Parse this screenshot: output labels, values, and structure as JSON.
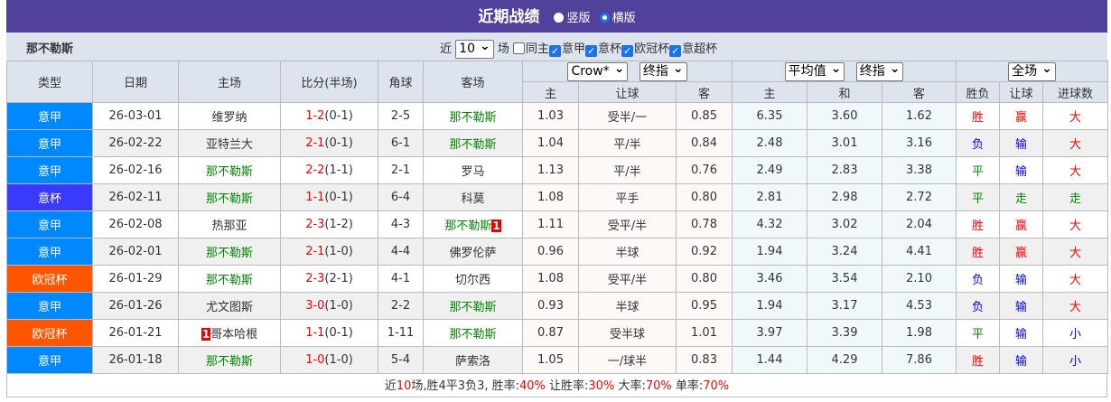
{
  "title": {
    "text": "近期战绩",
    "opt1": "竖版",
    "opt2": "横版",
    "selected": "横版"
  },
  "filter": {
    "team": "那不勒斯",
    "prefix": "近",
    "count": "10",
    "suffix": "场",
    "checks": [
      {
        "label": "同主",
        "checked": false
      },
      {
        "label": "意甲",
        "checked": true
      },
      {
        "label": "意杯",
        "checked": true
      },
      {
        "label": "欧冠杯",
        "checked": true
      },
      {
        "label": "意超杯",
        "checked": true
      }
    ]
  },
  "headers": {
    "type": "类型",
    "date": "日期",
    "home": "主场",
    "score": "比分(半场)",
    "corner": "角球",
    "away": "客场",
    "company": "Crow*",
    "crow_type": "终指",
    "avg": "平均值",
    "avg_type": "终指",
    "period": "全场",
    "h": "主",
    "line": "让球",
    "a": "客",
    "ah": "主",
    "d": "和",
    "aa": "客",
    "wl": "胜负",
    "hc": "让球",
    "ou": "进球数"
  },
  "team_color": "#008800",
  "type_colors": {
    "意甲": "#0088ff",
    "意杯": "#3a3aff",
    "欧冠杯": "#ff5500"
  },
  "rows": [
    {
      "type": "意甲",
      "date": "26-03-01",
      "home": "维罗纳",
      "home_card": "",
      "score": "1-2",
      "half": "(0-1)",
      "corner": "2-5",
      "away": "那不勒斯",
      "away_card": "",
      "ch": "1.03",
      "cl": "受半/一",
      "ca": "0.85",
      "ah": "6.35",
      "ad": "3.60",
      "aa": "1.62",
      "wl": "胜",
      "hc": "赢",
      "ou": "大"
    },
    {
      "type": "意甲",
      "date": "26-02-22",
      "home": "亚特兰大",
      "home_card": "",
      "score": "2-1",
      "half": "(0-1)",
      "corner": "6-1",
      "away": "那不勒斯",
      "away_card": "",
      "ch": "1.04",
      "cl": "平/半",
      "ca": "0.84",
      "ah": "2.48",
      "ad": "3.01",
      "aa": "3.16",
      "wl": "负",
      "hc": "输",
      "ou": "大"
    },
    {
      "type": "意甲",
      "date": "26-02-16",
      "home": "那不勒斯",
      "home_card": "",
      "score": "2-2",
      "half": "(1-1)",
      "corner": "2-1",
      "away": "罗马",
      "away_card": "",
      "ch": "1.13",
      "cl": "平/半",
      "ca": "0.76",
      "ah": "2.49",
      "ad": "2.83",
      "aa": "3.38",
      "wl": "平",
      "hc": "输",
      "ou": "大"
    },
    {
      "type": "意杯",
      "date": "26-02-11",
      "home": "那不勒斯",
      "home_card": "",
      "score": "1-1",
      "half": "(0-1)",
      "corner": "6-4",
      "away": "科莫",
      "away_card": "",
      "ch": "1.08",
      "cl": "平手",
      "ca": "0.80",
      "ah": "2.81",
      "ad": "2.98",
      "aa": "2.72",
      "wl": "平",
      "hc": "走",
      "ou": "走"
    },
    {
      "type": "意甲",
      "date": "26-02-08",
      "home": "热那亚",
      "home_card": "",
      "score": "2-3",
      "half": "(1-2)",
      "corner": "4-3",
      "away": "那不勒斯",
      "away_card": "1",
      "ch": "1.11",
      "cl": "受平/半",
      "ca": "0.78",
      "ah": "4.32",
      "ad": "3.02",
      "aa": "2.04",
      "wl": "胜",
      "hc": "赢",
      "ou": "大"
    },
    {
      "type": "意甲",
      "date": "26-02-01",
      "home": "那不勒斯",
      "home_card": "",
      "score": "2-1",
      "half": "(1-0)",
      "corner": "4-4",
      "away": "佛罗伦萨",
      "away_card": "",
      "ch": "0.96",
      "cl": "半球",
      "ca": "0.92",
      "ah": "1.94",
      "ad": "3.24",
      "aa": "4.41",
      "wl": "胜",
      "hc": "赢",
      "ou": "大"
    },
    {
      "type": "欧冠杯",
      "date": "26-01-29",
      "home": "那不勒斯",
      "home_card": "",
      "score": "2-3",
      "half": "(2-1)",
      "corner": "4-1",
      "away": "切尔西",
      "away_card": "",
      "ch": "1.08",
      "cl": "受平/半",
      "ca": "0.80",
      "ah": "3.46",
      "ad": "3.54",
      "aa": "2.10",
      "wl": "负",
      "hc": "输",
      "ou": "大"
    },
    {
      "type": "意甲",
      "date": "26-01-26",
      "home": "尤文图斯",
      "home_card": "",
      "score": "3-0",
      "half": "(1-0)",
      "corner": "2-2",
      "away": "那不勒斯",
      "away_card": "",
      "ch": "0.93",
      "cl": "半球",
      "ca": "0.95",
      "ah": "1.94",
      "ad": "3.17",
      "aa": "4.53",
      "wl": "负",
      "hc": "输",
      "ou": "大"
    },
    {
      "type": "欧冠杯",
      "date": "26-01-21",
      "home": "哥本哈根",
      "home_card": "1",
      "score": "1-1",
      "half": "(0-1)",
      "corner": "1-11",
      "away": "那不勒斯",
      "away_card": "",
      "ch": "0.87",
      "cl": "受半球",
      "ca": "1.01",
      "ah": "3.97",
      "ad": "3.39",
      "aa": "1.98",
      "wl": "平",
      "hc": "输",
      "ou": "小"
    },
    {
      "type": "意甲",
      "date": "26-01-18",
      "home": "那不勒斯",
      "home_card": "",
      "score": "1-0",
      "half": "(1-0)",
      "corner": "5-4",
      "away": "萨索洛",
      "away_card": "",
      "ch": "1.05",
      "cl": "一/球半",
      "ca": "0.83",
      "ah": "1.44",
      "ad": "4.29",
      "aa": "7.86",
      "wl": "胜",
      "hc": "输",
      "ou": "小"
    }
  ],
  "summary": {
    "p1": "近",
    "n": "10",
    "p2": "场,胜4平3负3, 胜率:",
    "win": "40%",
    "p3": " 让胜率:",
    "hcwin": "30%",
    "p4": " 大率:",
    "big": "70%",
    "p5": " 单率:",
    "odd": "70%"
  }
}
